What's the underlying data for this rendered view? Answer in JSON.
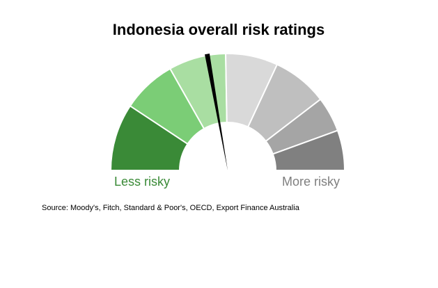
{
  "chart_data": {
    "type": "gauge",
    "title": "Indonesia overall risk ratings",
    "xlim": [
      0,
      180
    ],
    "values": [
      33.5,
      27,
      28.5,
      26,
      27.5,
      17.5,
      20
    ],
    "colors": [
      "#3a8a37",
      "#7bcd76",
      "#a9dea2",
      "#d9d9d9",
      "#bfbfbf",
      "#a5a5a5",
      "#808080"
    ],
    "needle": 80,
    "annotations": [
      "Less risky",
      "More risky"
    ],
    "source": "Source: Moody's, Fitch, Standard & Poor's, OECD, Export Finance Australia"
  }
}
